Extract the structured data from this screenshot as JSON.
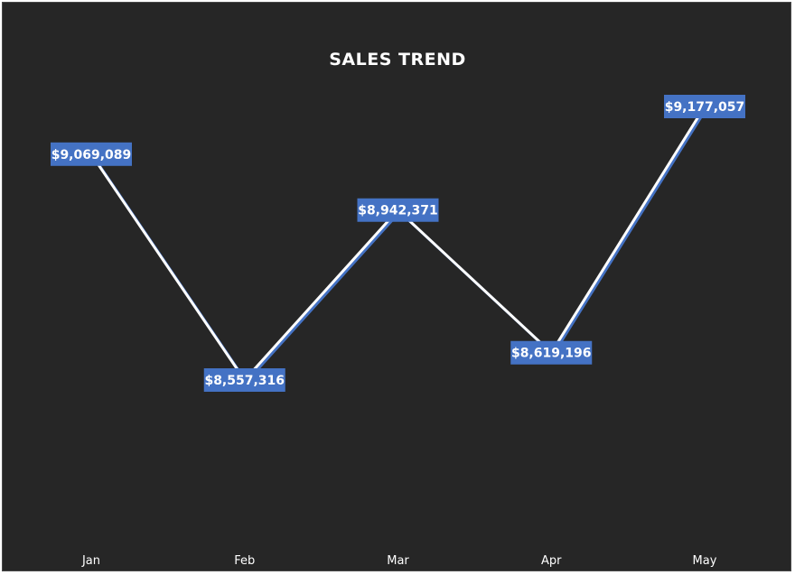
{
  "chart_data": {
    "type": "line",
    "title": "SALES TREND",
    "xlabel": "",
    "ylabel": "",
    "categories": [
      "Jan",
      "Feb",
      "Mar",
      "Apr",
      "May"
    ],
    "series": [
      {
        "values": [
          9069089,
          8557316,
          8942371,
          8619196,
          9177057
        ],
        "labels": [
          "$9,069,089",
          "$8,557,316",
          "$8,942,371",
          "$8,619,196",
          "$9,177,057"
        ]
      }
    ],
    "ylim": [
      8000000,
      9300000
    ],
    "grid": false,
    "legend": "none",
    "colors": {
      "background": "#262626",
      "line": "#ffffff",
      "line_shadow": "#4472c4",
      "label_box": "#4472c4",
      "drop_line": "#ffffff",
      "text": "#ffffff"
    }
  }
}
